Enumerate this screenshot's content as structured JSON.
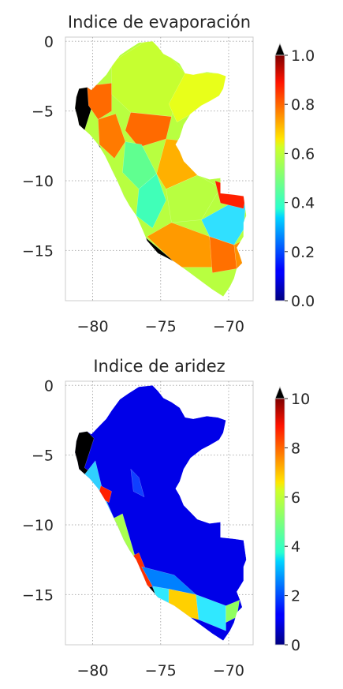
{
  "panels": [
    {
      "title": "Indice de evaporación",
      "x_ticks": [
        -80,
        -75,
        -70
      ],
      "y_ticks": [
        0,
        -5,
        -10,
        -15
      ],
      "x_tick_labels": [
        "−80",
        "−75",
        "−70"
      ],
      "y_tick_labels": [
        "0",
        "−5",
        "−10",
        "−15"
      ],
      "xlim": [
        -82.0,
        -68.2
      ],
      "ylim": [
        -18.6,
        0.3
      ],
      "colorbar": {
        "min": 0.0,
        "max": 1.0,
        "ticks": [
          0.0,
          0.2,
          0.4,
          0.6,
          0.8,
          1.0
        ],
        "tick_labels": [
          "0.0",
          "0.2",
          "0.4",
          "0.6",
          "0.8",
          "1.0"
        ],
        "colormap": "jet",
        "extend": "max"
      }
    },
    {
      "title": "Indice de aridez",
      "x_ticks": [
        -80,
        -75,
        -70
      ],
      "y_ticks": [
        0,
        -5,
        -10,
        -15
      ],
      "x_tick_labels": [
        "−80",
        "−75",
        "−70"
      ],
      "y_tick_labels": [
        "0",
        "−5",
        "−10",
        "−15"
      ],
      "xlim": [
        -82.0,
        -68.2
      ],
      "ylim": [
        -18.6,
        0.3
      ],
      "colorbar": {
        "min": 0,
        "max": 10,
        "ticks": [
          0,
          2,
          4,
          6,
          8,
          10
        ],
        "tick_labels": [
          "0",
          "2",
          "4",
          "6",
          "8",
          "10"
        ],
        "colormap": "jet",
        "extend": "max"
      }
    }
  ],
  "colors": {
    "grid": "#b0b0b0",
    "spine": "#cccccc",
    "over_color": "#000000"
  }
}
